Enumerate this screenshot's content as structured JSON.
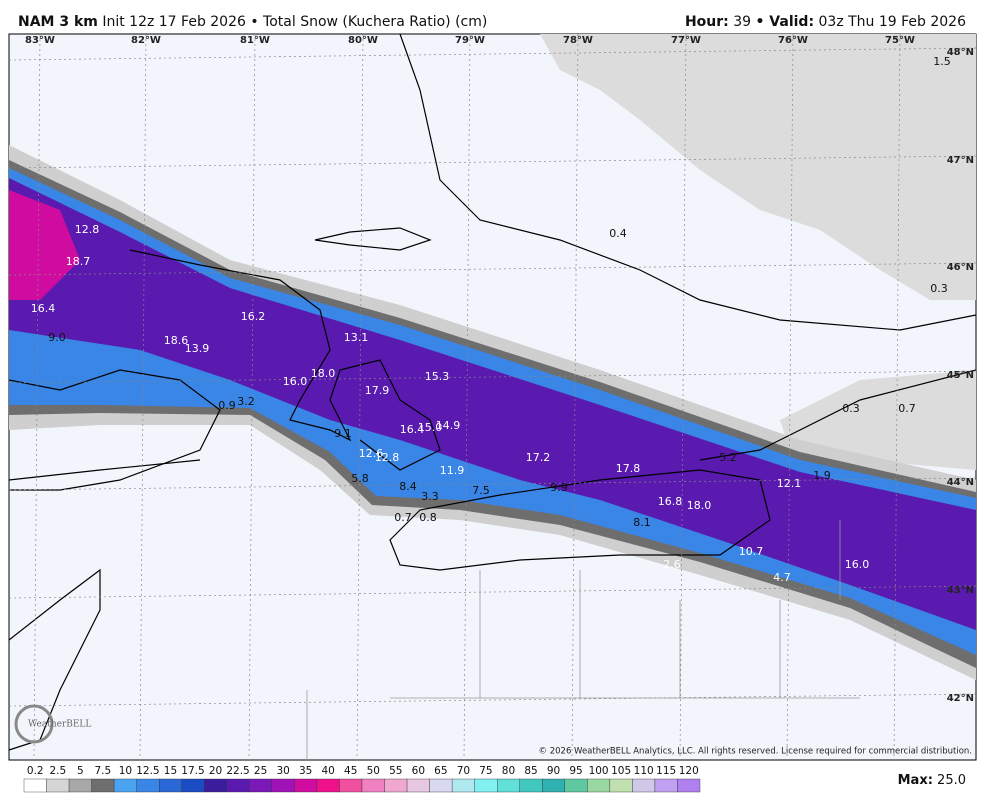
{
  "header": {
    "model": "NAM 3 km",
    "title": "Init 12z 17 Feb 2026 • Total Snow (Kuchera Ratio) (cm)",
    "hour_label": "Hour:",
    "hour": "39",
    "valid_label": "• Valid:",
    "valid": "03z Thu 19 Feb 2026"
  },
  "map": {
    "longitude_labels": [
      "83°W",
      "82°W",
      "81°W",
      "80°W",
      "79°W",
      "78°W",
      "77°W",
      "76°W",
      "75°W"
    ],
    "latitude_labels": [
      "48°N",
      "47°N",
      "46°N",
      "45°N",
      "44°N",
      "43°N",
      "42°N"
    ],
    "point_values": [
      "12.8",
      "18.7",
      "16.4",
      "9.0",
      "18.6",
      "13.9",
      "16.2",
      "13.1",
      "16.0",
      "18.0",
      "17.9",
      "15.3",
      "0.9",
      "3.2",
      "9.1",
      "16.4",
      "15.0",
      "14.9",
      "12.6",
      "12.8",
      "11.9",
      "17.2",
      "17.8",
      "5.8",
      "8.4",
      "3.3",
      "7.5",
      "9.9",
      "0.7",
      "0.8",
      "16.8",
      "18.0",
      "5.2",
      "12.1",
      "1.9",
      "8.1",
      "10.7",
      "16.0",
      "2.6",
      "4.7",
      "0.4",
      "1.5",
      "0.3",
      "0.3",
      "0.7"
    ],
    "logo": "WeatherBELL",
    "copyright": "© 2026 WeatherBELL Analytics, LLC. All rights reserved. License required for commercial distribution."
  },
  "colorbar": {
    "ticks": [
      "0.2",
      "2.5",
      "5",
      "7.5",
      "10",
      "12.5",
      "15",
      "17.5",
      "20",
      "22.5",
      "25",
      "30",
      "35",
      "40",
      "45",
      "50",
      "55",
      "60",
      "65",
      "70",
      "75",
      "80",
      "85",
      "90",
      "95",
      "100",
      "105",
      "110",
      "115",
      "120"
    ],
    "colors": [
      "#ffffff",
      "#d6d6d6",
      "#a8a8a8",
      "#6e6e6e",
      "#4aa3f0",
      "#3a86e6",
      "#2a68d8",
      "#1a4cc4",
      "#3b1e9e",
      "#5a1ab0",
      "#7a18b8",
      "#a012b8",
      "#d00ca0",
      "#f0108a",
      "#f050a0",
      "#f080c0",
      "#f0a8d0",
      "#e8c8e0",
      "#d8d8f0",
      "#b0e8f0",
      "#80f0f0",
      "#60e0d8",
      "#40c8c0",
      "#30b0b0",
      "#60c8a0",
      "#98d8a0",
      "#c0e0b0",
      "#d0c8e8",
      "#c0a0f0",
      "#b080f0"
    ],
    "max_label": "Max:",
    "max": "25.0"
  }
}
